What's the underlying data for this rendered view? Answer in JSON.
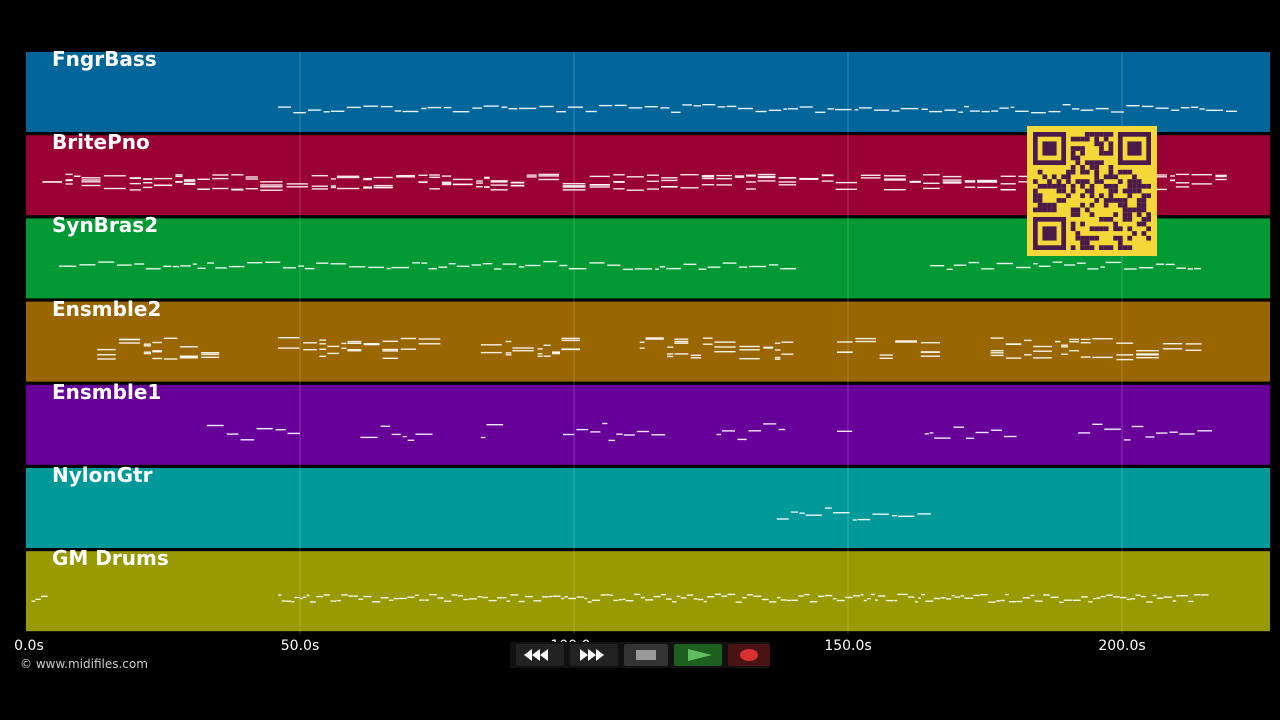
{
  "tracks": [
    {
      "name": "FngrBass",
      "color": "#006699"
    },
    {
      "name": "BritePno",
      "color": "#990033"
    },
    {
      "name": "SynBras2",
      "color": "#009933"
    },
    {
      "name": "Ensmble2",
      "color": "#996600"
    },
    {
      "name": "Ensmble1",
      "color": "#660099"
    },
    {
      "name": "NylonGtr",
      "color": "#009999"
    },
    {
      "name": "GM Drums",
      "color": "#999900"
    }
  ],
  "timeline": {
    "ticks": [
      {
        "seconds": 0,
        "label": "0.0s"
      },
      {
        "seconds": 50,
        "label": "50.0s"
      },
      {
        "seconds": 100,
        "label": "100.0s"
      },
      {
        "seconds": 150,
        "label": "150.0s"
      },
      {
        "seconds": 200,
        "label": "200.0s"
      }
    ]
  },
  "copyright": "© www.midifiles.com",
  "transport": {
    "rewind_icon": "rewind-icon",
    "forward_icon": "fast-forward-icon",
    "stop_icon": "stop-icon",
    "play_icon": "play-icon",
    "record_icon": "record-icon"
  },
  "qr_code": "qr-code"
}
